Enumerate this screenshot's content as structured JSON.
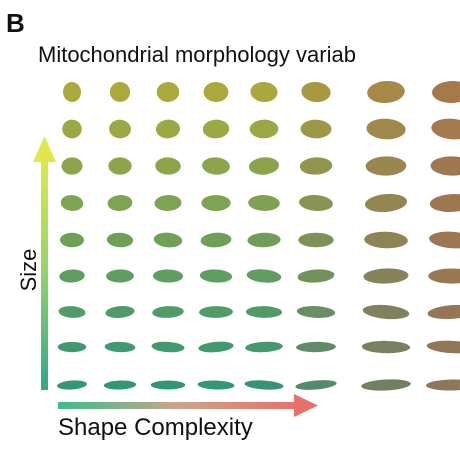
{
  "panel_label": "B",
  "title": "Mitochondrial morphology variab",
  "y_axis_label": "Size",
  "x_axis_label": "Shape Complexity"
}
